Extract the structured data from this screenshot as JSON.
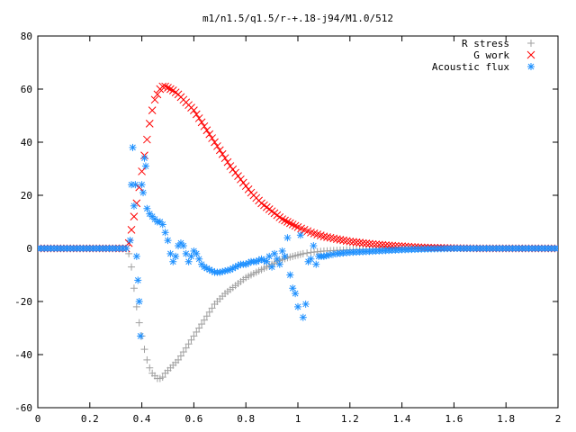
{
  "chart_data": {
    "type": "scatter",
    "title": "m1/n1.5/q1.5/r-+.18-j94/M1.0/512",
    "xlabel": "",
    "ylabel": "",
    "xlim": [
      0,
      2
    ],
    "ylim": [
      -60,
      80
    ],
    "x_ticks": [
      "0",
      "0.2",
      "0.4",
      "0.6",
      "0.8",
      "1",
      "1.2",
      "1.4",
      "1.6",
      "1.8",
      "2"
    ],
    "y_ticks": [
      "-60",
      "-40",
      "-20",
      "0",
      "20",
      "40",
      "60",
      "80"
    ],
    "grid": false,
    "legend_position": "top-right",
    "series": [
      {
        "name": "R stress",
        "marker": "plus",
        "color": "#a0a0a0",
        "points": [
          [
            0.0,
            0
          ],
          [
            0.1,
            0
          ],
          [
            0.2,
            0
          ],
          [
            0.3,
            0
          ],
          [
            0.34,
            0
          ],
          [
            0.35,
            -2
          ],
          [
            0.36,
            -7
          ],
          [
            0.37,
            -15
          ],
          [
            0.38,
            -22
          ],
          [
            0.39,
            -28
          ],
          [
            0.4,
            -33
          ],
          [
            0.41,
            -38
          ],
          [
            0.42,
            -42
          ],
          [
            0.43,
            -45
          ],
          [
            0.44,
            -47
          ],
          [
            0.45,
            -48
          ],
          [
            0.46,
            -49
          ],
          [
            0.47,
            -49
          ],
          [
            0.48,
            -48.5
          ],
          [
            0.49,
            -47
          ],
          [
            0.5,
            -46
          ],
          [
            0.52,
            -44
          ],
          [
            0.54,
            -42
          ],
          [
            0.56,
            -39
          ],
          [
            0.58,
            -36
          ],
          [
            0.6,
            -33
          ],
          [
            0.62,
            -30
          ],
          [
            0.64,
            -27
          ],
          [
            0.66,
            -24
          ],
          [
            0.68,
            -21
          ],
          [
            0.7,
            -19
          ],
          [
            0.72,
            -17
          ],
          [
            0.74,
            -15.5
          ],
          [
            0.76,
            -14
          ],
          [
            0.78,
            -12.5
          ],
          [
            0.8,
            -11
          ],
          [
            0.82,
            -10
          ],
          [
            0.84,
            -9
          ],
          [
            0.86,
            -8
          ],
          [
            0.88,
            -7
          ],
          [
            0.9,
            -6
          ],
          [
            0.92,
            -5
          ],
          [
            0.94,
            -4.2
          ],
          [
            0.96,
            -3.5
          ],
          [
            0.98,
            -3
          ],
          [
            1.0,
            -2.5
          ],
          [
            1.02,
            -2
          ],
          [
            1.05,
            -1.5
          ],
          [
            1.1,
            -1
          ],
          [
            1.2,
            -0.5
          ],
          [
            1.3,
            -0.3
          ],
          [
            1.4,
            -0.1
          ],
          [
            1.6,
            0
          ],
          [
            1.8,
            0
          ],
          [
            2.0,
            0
          ]
        ]
      },
      {
        "name": "G work",
        "marker": "cross",
        "color": "#ff0000",
        "points": [
          [
            0.0,
            0
          ],
          [
            0.1,
            0
          ],
          [
            0.2,
            0
          ],
          [
            0.3,
            0
          ],
          [
            0.34,
            0
          ],
          [
            0.35,
            2
          ],
          [
            0.36,
            7
          ],
          [
            0.37,
            12
          ],
          [
            0.38,
            17
          ],
          [
            0.39,
            23
          ],
          [
            0.4,
            29
          ],
          [
            0.41,
            35
          ],
          [
            0.42,
            41
          ],
          [
            0.43,
            47
          ],
          [
            0.44,
            52
          ],
          [
            0.45,
            56
          ],
          [
            0.46,
            58
          ],
          [
            0.47,
            60
          ],
          [
            0.48,
            61
          ],
          [
            0.49,
            61
          ],
          [
            0.5,
            60.5
          ],
          [
            0.52,
            59.5
          ],
          [
            0.54,
            58
          ],
          [
            0.56,
            56
          ],
          [
            0.58,
            54
          ],
          [
            0.6,
            52
          ],
          [
            0.62,
            49
          ],
          [
            0.64,
            46
          ],
          [
            0.66,
            43
          ],
          [
            0.68,
            40
          ],
          [
            0.7,
            37
          ],
          [
            0.72,
            34
          ],
          [
            0.74,
            31
          ],
          [
            0.76,
            28.5
          ],
          [
            0.78,
            26
          ],
          [
            0.8,
            23.5
          ],
          [
            0.82,
            21
          ],
          [
            0.84,
            19
          ],
          [
            0.86,
            17
          ],
          [
            0.88,
            15.5
          ],
          [
            0.9,
            14
          ],
          [
            0.92,
            12.5
          ],
          [
            0.94,
            11
          ],
          [
            0.96,
            10
          ],
          [
            0.98,
            9
          ],
          [
            1.0,
            8
          ],
          [
            1.05,
            6
          ],
          [
            1.1,
            4.5
          ],
          [
            1.15,
            3.5
          ],
          [
            1.2,
            2.6
          ],
          [
            1.25,
            2
          ],
          [
            1.3,
            1.5
          ],
          [
            1.35,
            1.1
          ],
          [
            1.4,
            0.8
          ],
          [
            1.45,
            0.5
          ],
          [
            1.5,
            0.3
          ],
          [
            1.6,
            0.1
          ],
          [
            1.7,
            0
          ],
          [
            1.8,
            0
          ],
          [
            2.0,
            0
          ]
        ]
      },
      {
        "name": "Acoustic flux",
        "marker": "star",
        "color": "#1e90ff",
        "points": [
          [
            0.0,
            0
          ],
          [
            0.1,
            0
          ],
          [
            0.2,
            0
          ],
          [
            0.3,
            0
          ],
          [
            0.34,
            0
          ],
          [
            0.355,
            3
          ],
          [
            0.36,
            24
          ],
          [
            0.365,
            38
          ],
          [
            0.37,
            16
          ],
          [
            0.375,
            24
          ],
          [
            0.38,
            -3
          ],
          [
            0.385,
            -12
          ],
          [
            0.39,
            -20
          ],
          [
            0.395,
            -33
          ],
          [
            0.4,
            24
          ],
          [
            0.405,
            21
          ],
          [
            0.41,
            34
          ],
          [
            0.415,
            31
          ],
          [
            0.42,
            15
          ],
          [
            0.43,
            13
          ],
          [
            0.44,
            12
          ],
          [
            0.45,
            11
          ],
          [
            0.46,
            10
          ],
          [
            0.47,
            10
          ],
          [
            0.48,
            9
          ],
          [
            0.49,
            6
          ],
          [
            0.5,
            3
          ],
          [
            0.51,
            -2
          ],
          [
            0.52,
            -5
          ],
          [
            0.53,
            -3
          ],
          [
            0.54,
            1
          ],
          [
            0.55,
            2
          ],
          [
            0.56,
            1
          ],
          [
            0.57,
            -2
          ],
          [
            0.58,
            -5
          ],
          [
            0.59,
            -3
          ],
          [
            0.6,
            -1
          ],
          [
            0.61,
            -2
          ],
          [
            0.62,
            -4
          ],
          [
            0.63,
            -6
          ],
          [
            0.64,
            -7
          ],
          [
            0.66,
            -8
          ],
          [
            0.68,
            -9
          ],
          [
            0.7,
            -9
          ],
          [
            0.72,
            -8.5
          ],
          [
            0.74,
            -8
          ],
          [
            0.76,
            -7
          ],
          [
            0.78,
            -6
          ],
          [
            0.8,
            -6
          ],
          [
            0.82,
            -5
          ],
          [
            0.84,
            -5
          ],
          [
            0.86,
            -4
          ],
          [
            0.88,
            -5
          ],
          [
            0.89,
            -3
          ],
          [
            0.9,
            -7
          ],
          [
            0.91,
            -2
          ],
          [
            0.92,
            -4
          ],
          [
            0.93,
            -6
          ],
          [
            0.94,
            -1
          ],
          [
            0.95,
            -3
          ],
          [
            0.96,
            4
          ],
          [
            0.97,
            -10
          ],
          [
            0.98,
            -15
          ],
          [
            0.99,
            -17
          ],
          [
            1.0,
            -22
          ],
          [
            1.01,
            5
          ],
          [
            1.02,
            -26
          ],
          [
            1.03,
            -21
          ],
          [
            1.04,
            -5
          ],
          [
            1.05,
            -4
          ],
          [
            1.06,
            1
          ],
          [
            1.07,
            -6
          ],
          [
            1.08,
            -3
          ],
          [
            1.1,
            -3
          ],
          [
            1.12,
            -2.5
          ],
          [
            1.15,
            -2
          ],
          [
            1.2,
            -1.5
          ],
          [
            1.3,
            -1
          ],
          [
            1.4,
            -0.5
          ],
          [
            1.5,
            -0.2
          ],
          [
            1.6,
            0
          ],
          [
            1.8,
            0
          ],
          [
            2.0,
            0
          ]
        ]
      }
    ]
  }
}
